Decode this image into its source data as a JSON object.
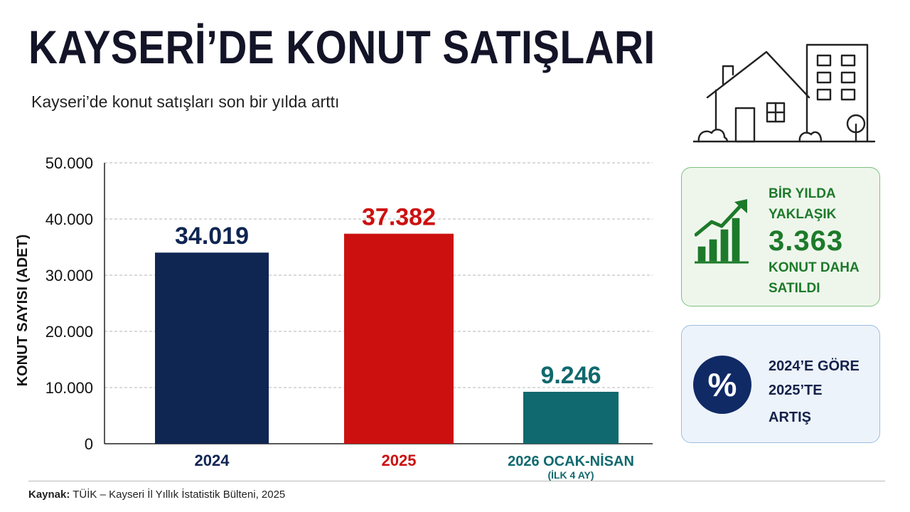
{
  "header": {
    "title": "KAYSERİ’DE KONUT SATIŞLARI",
    "subtitle": "Kayseri’de konut satışları son bir yılda arttı"
  },
  "chart_data": {
    "type": "bar",
    "categories": [
      "2024",
      "2025",
      "2026 OCAK-NİSAN"
    ],
    "category_notes": [
      "",
      "",
      "(İLK 4 AY)"
    ],
    "values": [
      34019,
      37382,
      9246
    ],
    "value_labels": [
      "34.019",
      "37.382",
      "9.246"
    ],
    "colors": [
      "#0f2552",
      "#cc1010",
      "#10696e"
    ],
    "label_colors": [
      "#0f2552",
      "#cc1010",
      "#10696e"
    ],
    "xlabel": "",
    "ylabel": "KONUT SAYISI (ADET)",
    "ylim": [
      0,
      50000
    ],
    "yticks": [
      0,
      10000,
      20000,
      30000,
      40000,
      50000
    ],
    "ytick_labels": [
      "0",
      "10.000",
      "20.000",
      "30.000",
      "40.000",
      "50.000"
    ],
    "grid": true,
    "legend": "none"
  },
  "side_panels": {
    "increase": {
      "line1": "BİR YILDA",
      "line2": "YAKLAŞIK",
      "value": "3.363",
      "line3": "KONUT DAHA",
      "line4": "SATILDI",
      "icon": "rising-bar-chart-icon",
      "color": "#1d7a2a"
    },
    "percent": {
      "symbol": "%",
      "line1": "2024’E GÖRE",
      "line2": "2025’TE",
      "line3": "ARTIŞ",
      "icon": "percent-icon",
      "color": "#102a66"
    }
  },
  "illustration": {
    "icon": "house-and-building-icon"
  },
  "footer": {
    "source_label": "Kaynak:",
    "source_text": " TÜİK – Kayseri İl Yıllık İstatistik Bülteni, 2025"
  }
}
